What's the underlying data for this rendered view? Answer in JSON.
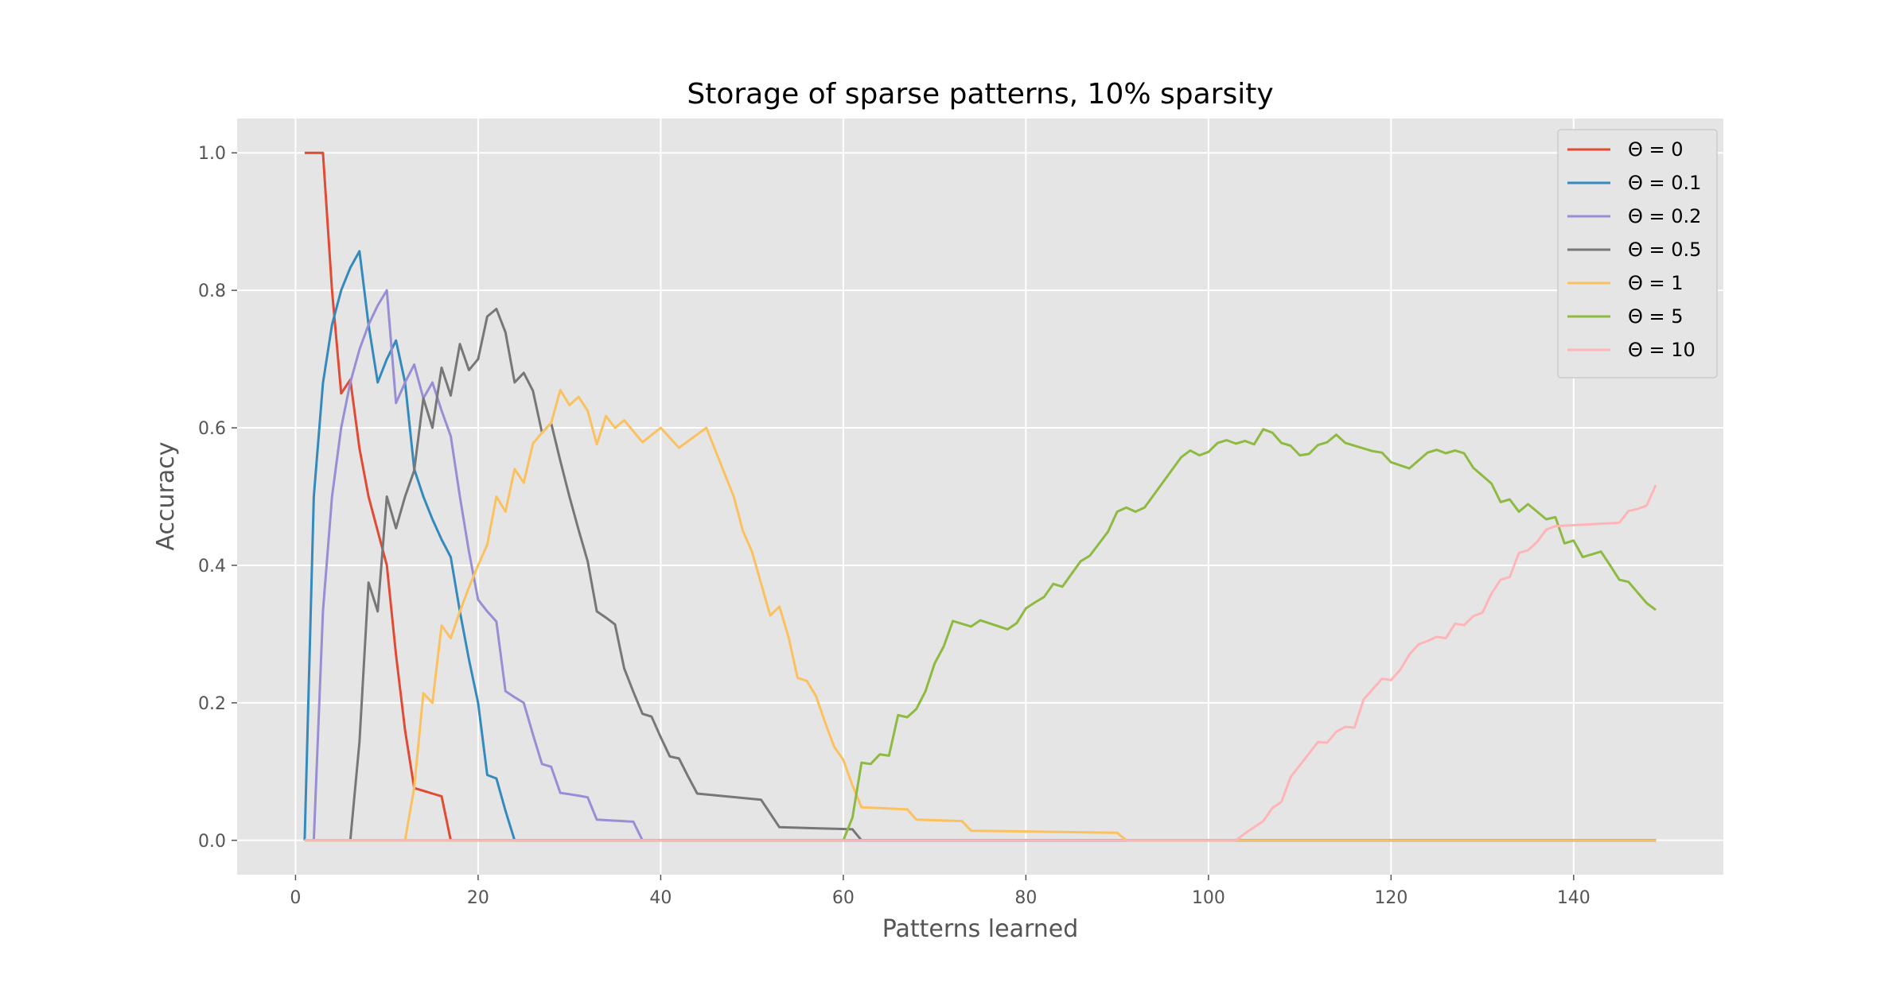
{
  "chart_data": {
    "type": "line",
    "title": "Storage of sparse patterns, 10% sparsity",
    "xlabel": "Patterns learned",
    "ylabel": "Accuracy",
    "xlim": [
      -6.4,
      156.4
    ],
    "ylim": [
      -0.05,
      1.05
    ],
    "xticks": [
      0,
      20,
      40,
      60,
      80,
      100,
      120,
      140
    ],
    "yticks": [
      0.0,
      0.2,
      0.4,
      0.6,
      0.8,
      1.0
    ],
    "ytick_labels": [
      "0.0",
      "0.2",
      "0.4",
      "0.6",
      "0.8",
      "1.0"
    ],
    "grid": true,
    "legend_position": "top-right",
    "series": [
      {
        "name": "Θ = 0",
        "color": "#E24A33",
        "points": [
          [
            1,
            1.0
          ],
          [
            2,
            1.0
          ],
          [
            3,
            1.0
          ],
          [
            4,
            0.8
          ],
          [
            5,
            0.65
          ],
          [
            6,
            0.67
          ],
          [
            7,
            0.57
          ],
          [
            8,
            0.5
          ],
          [
            9,
            0.45
          ],
          [
            10,
            0.4
          ],
          [
            11,
            0.27
          ],
          [
            12,
            0.16
          ],
          [
            13,
            0.076
          ],
          [
            14,
            0.072
          ],
          [
            15,
            0.068
          ],
          [
            16,
            0.064
          ],
          [
            17,
            0.0
          ],
          [
            149,
            0.0
          ]
        ]
      },
      {
        "name": "Θ = 0.1",
        "color": "#348ABD",
        "points": [
          [
            1,
            0.0
          ],
          [
            2,
            0.5
          ],
          [
            3,
            0.665
          ],
          [
            4,
            0.75
          ],
          [
            5,
            0.8
          ],
          [
            6,
            0.833
          ],
          [
            7,
            0.857
          ],
          [
            8,
            0.75
          ],
          [
            9,
            0.666
          ],
          [
            10,
            0.7
          ],
          [
            11,
            0.727
          ],
          [
            12,
            0.666
          ],
          [
            13,
            0.54
          ],
          [
            14,
            0.5
          ],
          [
            15,
            0.467
          ],
          [
            16,
            0.4375
          ],
          [
            17,
            0.412
          ],
          [
            18,
            0.333
          ],
          [
            19,
            0.263
          ],
          [
            20,
            0.2
          ],
          [
            21,
            0.095
          ],
          [
            22,
            0.09
          ],
          [
            23,
            0.043
          ],
          [
            24,
            0.0
          ],
          [
            149,
            0.0
          ]
        ]
      },
      {
        "name": "Θ = 0.2",
        "color": "#988ED5",
        "points": [
          [
            2,
            0.0
          ],
          [
            3,
            0.333
          ],
          [
            4,
            0.5
          ],
          [
            5,
            0.6
          ],
          [
            6,
            0.666
          ],
          [
            7,
            0.714
          ],
          [
            8,
            0.75
          ],
          [
            9,
            0.778
          ],
          [
            10,
            0.8
          ],
          [
            11,
            0.636
          ],
          [
            12,
            0.666
          ],
          [
            13,
            0.692
          ],
          [
            14,
            0.643
          ],
          [
            15,
            0.666
          ],
          [
            16,
            0.625
          ],
          [
            17,
            0.588
          ],
          [
            18,
            0.5
          ],
          [
            19,
            0.42
          ],
          [
            20,
            0.35
          ],
          [
            21,
            0.333
          ],
          [
            22,
            0.318
          ],
          [
            23,
            0.217
          ],
          [
            24,
            0.208
          ],
          [
            25,
            0.2
          ],
          [
            26,
            0.154
          ],
          [
            27,
            0.111
          ],
          [
            28,
            0.107
          ],
          [
            29,
            0.069
          ],
          [
            30,
            0.067
          ],
          [
            31,
            0.065
          ],
          [
            32,
            0.0625
          ],
          [
            33,
            0.03
          ],
          [
            37,
            0.027
          ],
          [
            38,
            0.0
          ],
          [
            149,
            0.0
          ]
        ]
      },
      {
        "name": "Θ = 0.5",
        "color": "#777777",
        "points": [
          [
            6,
            0.0
          ],
          [
            7,
            0.143
          ],
          [
            8,
            0.375
          ],
          [
            9,
            0.333
          ],
          [
            10,
            0.5
          ],
          [
            11,
            0.454
          ],
          [
            12,
            0.5
          ],
          [
            13,
            0.538
          ],
          [
            14,
            0.643
          ],
          [
            15,
            0.6
          ],
          [
            16,
            0.6875
          ],
          [
            17,
            0.647
          ],
          [
            18,
            0.722
          ],
          [
            19,
            0.684
          ],
          [
            20,
            0.7
          ],
          [
            21,
            0.762
          ],
          [
            22,
            0.773
          ],
          [
            23,
            0.739
          ],
          [
            24,
            0.666
          ],
          [
            25,
            0.68
          ],
          [
            26,
            0.654
          ],
          [
            27,
            0.593
          ],
          [
            28,
            0.607
          ],
          [
            29,
            0.552
          ],
          [
            30,
            0.5
          ],
          [
            31,
            0.452
          ],
          [
            32,
            0.406
          ],
          [
            33,
            0.333
          ],
          [
            34,
            0.324
          ],
          [
            35,
            0.314
          ],
          [
            36,
            0.25
          ],
          [
            37,
            0.216
          ],
          [
            38,
            0.184
          ],
          [
            39,
            0.18
          ],
          [
            40,
            0.15
          ],
          [
            41,
            0.122
          ],
          [
            42,
            0.119
          ],
          [
            43,
            0.093
          ],
          [
            44,
            0.068
          ],
          [
            51,
            0.059
          ],
          [
            53,
            0.019
          ],
          [
            61,
            0.016
          ],
          [
            62,
            0.0
          ],
          [
            149,
            0.0
          ]
        ]
      },
      {
        "name": "Θ = 1",
        "color": "#FBC15E",
        "points": [
          [
            1,
            0.0
          ],
          [
            12,
            0.0
          ],
          [
            13,
            0.077
          ],
          [
            14,
            0.214
          ],
          [
            15,
            0.2
          ],
          [
            16,
            0.3125
          ],
          [
            17,
            0.294
          ],
          [
            18,
            0.333
          ],
          [
            19,
            0.368
          ],
          [
            20,
            0.4
          ],
          [
            21,
            0.43
          ],
          [
            22,
            0.5
          ],
          [
            23,
            0.478
          ],
          [
            24,
            0.54
          ],
          [
            25,
            0.52
          ],
          [
            26,
            0.577
          ],
          [
            27,
            0.593
          ],
          [
            28,
            0.607
          ],
          [
            29,
            0.655
          ],
          [
            30,
            0.633
          ],
          [
            31,
            0.645
          ],
          [
            32,
            0.625
          ],
          [
            33,
            0.576
          ],
          [
            34,
            0.617
          ],
          [
            35,
            0.6
          ],
          [
            36,
            0.611
          ],
          [
            38,
            0.579
          ],
          [
            40,
            0.6
          ],
          [
            42,
            0.571
          ],
          [
            45,
            0.6
          ],
          [
            48,
            0.5
          ],
          [
            49,
            0.45
          ],
          [
            50,
            0.42
          ],
          [
            52,
            0.327
          ],
          [
            53,
            0.34
          ],
          [
            54,
            0.296
          ],
          [
            55,
            0.236
          ],
          [
            56,
            0.232
          ],
          [
            57,
            0.21
          ],
          [
            58,
            0.172
          ],
          [
            59,
            0.136
          ],
          [
            60,
            0.117
          ],
          [
            61,
            0.08
          ],
          [
            62,
            0.048
          ],
          [
            67,
            0.045
          ],
          [
            68,
            0.03
          ],
          [
            73,
            0.028
          ],
          [
            74,
            0.014
          ],
          [
            90,
            0.011
          ],
          [
            91,
            0.0
          ],
          [
            149,
            0.0
          ]
        ]
      },
      {
        "name": "Θ = 5",
        "color": "#8EBA42",
        "points": [
          [
            1,
            0.0
          ],
          [
            60,
            0.0
          ],
          [
            61,
            0.033
          ],
          [
            62,
            0.113
          ],
          [
            63,
            0.111
          ],
          [
            64,
            0.125
          ],
          [
            65,
            0.123
          ],
          [
            66,
            0.182
          ],
          [
            67,
            0.179
          ],
          [
            68,
            0.191
          ],
          [
            69,
            0.217
          ],
          [
            70,
            0.257
          ],
          [
            71,
            0.282
          ],
          [
            72,
            0.319
          ],
          [
            74,
            0.311
          ],
          [
            75,
            0.32
          ],
          [
            78,
            0.307
          ],
          [
            79,
            0.316
          ],
          [
            80,
            0.3375
          ],
          [
            81,
            0.346
          ],
          [
            82,
            0.354
          ],
          [
            83,
            0.373
          ],
          [
            84,
            0.369
          ],
          [
            86,
            0.406
          ],
          [
            87,
            0.414
          ],
          [
            89,
            0.449
          ],
          [
            90,
            0.478
          ],
          [
            91,
            0.484
          ],
          [
            92,
            0.478
          ],
          [
            93,
            0.484
          ],
          [
            97,
            0.557
          ],
          [
            98,
            0.567
          ],
          [
            99,
            0.56
          ],
          [
            100,
            0.565
          ],
          [
            101,
            0.578
          ],
          [
            102,
            0.582
          ],
          [
            103,
            0.577
          ],
          [
            104,
            0.581
          ],
          [
            105,
            0.576
          ],
          [
            106,
            0.598
          ],
          [
            107,
            0.593
          ],
          [
            108,
            0.578
          ],
          [
            109,
            0.574
          ],
          [
            110,
            0.56
          ],
          [
            111,
            0.562
          ],
          [
            112,
            0.575
          ],
          [
            113,
            0.579
          ],
          [
            114,
            0.59
          ],
          [
            115,
            0.578
          ],
          [
            118,
            0.566
          ],
          [
            119,
            0.564
          ],
          [
            120,
            0.55
          ],
          [
            122,
            0.541
          ],
          [
            124,
            0.564
          ],
          [
            125,
            0.568
          ],
          [
            126,
            0.563
          ],
          [
            127,
            0.567
          ],
          [
            128,
            0.563
          ],
          [
            129,
            0.542
          ],
          [
            131,
            0.519
          ],
          [
            132,
            0.492
          ],
          [
            133,
            0.496
          ],
          [
            134,
            0.478
          ],
          [
            135,
            0.489
          ],
          [
            137,
            0.467
          ],
          [
            138,
            0.47
          ],
          [
            139,
            0.432
          ],
          [
            140,
            0.436
          ],
          [
            141,
            0.412
          ],
          [
            143,
            0.42
          ],
          [
            144,
            0.4
          ],
          [
            145,
            0.379
          ],
          [
            146,
            0.376
          ],
          [
            148,
            0.345
          ],
          [
            149,
            0.335
          ]
        ]
      },
      {
        "name": "Θ = 10",
        "color": "#FFB5B8",
        "points": [
          [
            1,
            0.0
          ],
          [
            103,
            0.0
          ],
          [
            104,
            0.01
          ],
          [
            105,
            0.019
          ],
          [
            106,
            0.028
          ],
          [
            107,
            0.047
          ],
          [
            108,
            0.056
          ],
          [
            109,
            0.092
          ],
          [
            110,
            0.109
          ],
          [
            111,
            0.126
          ],
          [
            112,
            0.143
          ],
          [
            113,
            0.142
          ],
          [
            114,
            0.158
          ],
          [
            115,
            0.165
          ],
          [
            116,
            0.164
          ],
          [
            117,
            0.205
          ],
          [
            118,
            0.22
          ],
          [
            119,
            0.235
          ],
          [
            120,
            0.233
          ],
          [
            121,
            0.248
          ],
          [
            122,
            0.27
          ],
          [
            123,
            0.285
          ],
          [
            124,
            0.29
          ],
          [
            125,
            0.296
          ],
          [
            126,
            0.294
          ],
          [
            127,
            0.315
          ],
          [
            128,
            0.313
          ],
          [
            129,
            0.326
          ],
          [
            130,
            0.331
          ],
          [
            131,
            0.359
          ],
          [
            132,
            0.379
          ],
          [
            133,
            0.383
          ],
          [
            134,
            0.418
          ],
          [
            135,
            0.422
          ],
          [
            136,
            0.434
          ],
          [
            137,
            0.452
          ],
          [
            138,
            0.457
          ],
          [
            145,
            0.462
          ],
          [
            146,
            0.479
          ],
          [
            147,
            0.482
          ],
          [
            148,
            0.487
          ],
          [
            149,
            0.517
          ]
        ]
      }
    ]
  }
}
